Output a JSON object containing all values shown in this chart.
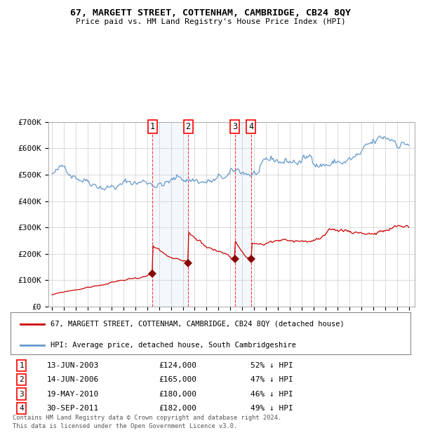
{
  "title": "67, MARGETT STREET, COTTENHAM, CAMBRIDGE, CB24 8QY",
  "subtitle": "Price paid vs. HM Land Registry's House Price Index (HPI)",
  "legend_line1": "67, MARGETT STREET, COTTENHAM, CAMBRIDGE, CB24 8QY (detached house)",
  "legend_line2": "HPI: Average price, detached house, South Cambridgeshire",
  "footer1": "Contains HM Land Registry data © Crown copyright and database right 2024.",
  "footer2": "This data is licensed under the Open Government Licence v3.0.",
  "hpi_color": "#6699cc",
  "price_color": "#cc0000",
  "marker_color": "#880000",
  "background_color": "#ffffff",
  "grid_color": "#cccccc",
  "transactions": [
    {
      "num": 1,
      "date": "13-JUN-2003",
      "date_x": 2003.45,
      "price": 124000,
      "pct": "52% ↓ HPI"
    },
    {
      "num": 2,
      "date": "14-JUN-2006",
      "date_x": 2006.45,
      "price": 165000,
      "pct": "47% ↓ HPI"
    },
    {
      "num": 3,
      "date": "19-MAY-2010",
      "date_x": 2010.37,
      "price": 180000,
      "pct": "46% ↓ HPI"
    },
    {
      "num": 4,
      "date": "30-SEP-2011",
      "date_x": 2011.75,
      "price": 182000,
      "pct": "49% ↓ HPI"
    }
  ],
  "ylim": [
    0,
    700000
  ],
  "yticks": [
    0,
    100000,
    200000,
    300000,
    400000,
    500000,
    600000,
    700000
  ],
  "ytick_labels": [
    "£0",
    "£100K",
    "£200K",
    "£300K",
    "£400K",
    "£500K",
    "£600K",
    "£700K"
  ],
  "xlim_start": 1994.7,
  "xlim_end": 2025.5,
  "xticks": [
    1995,
    1996,
    1997,
    1998,
    1999,
    2000,
    2001,
    2002,
    2003,
    2004,
    2005,
    2006,
    2007,
    2008,
    2009,
    2010,
    2011,
    2012,
    2013,
    2014,
    2015,
    2016,
    2017,
    2018,
    2019,
    2020,
    2021,
    2022,
    2023,
    2024,
    2025
  ]
}
